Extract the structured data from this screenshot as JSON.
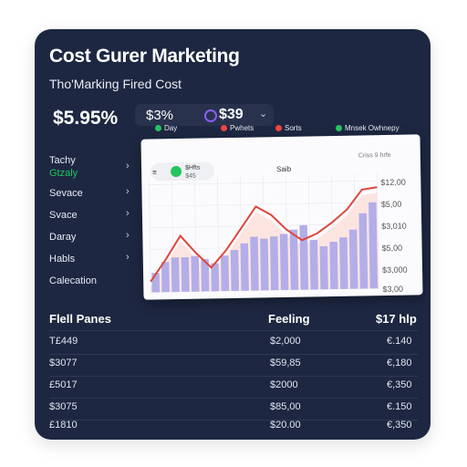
{
  "header": {
    "title": "Cost Gurer Marketing",
    "subtitle": "Tho'Marking Fired Cost",
    "big_value": "$5.95%",
    "pill": {
      "value_left": "$3%",
      "value_right": "$39"
    }
  },
  "sidebar": {
    "items": [
      {
        "label": "Tachy"
      },
      {
        "label": "Sevace"
      },
      {
        "label": "Svace"
      },
      {
        "label": "Daray"
      },
      {
        "label": "Habls"
      },
      {
        "label": "Calecation"
      }
    ],
    "active_sublabel": "Gtzaly"
  },
  "legend": {
    "items": [
      {
        "label": "Day",
        "color": "#22c55e"
      },
      {
        "label": "Pwhets",
        "color": "#ef4444"
      },
      {
        "label": "Sorts",
        "color": "#ef4444"
      },
      {
        "label": "Mnsek Owhnepy",
        "color": "#22c55e"
      }
    ]
  },
  "chart_panel": {
    "toolbar_text": "$Hfts",
    "toolbar_sub": "$45",
    "center_label": "Saib",
    "top_right_label": "Criss 9 hrfe",
    "tick_labels": [
      "$12,00",
      "$5,00",
      "$3,010",
      "$5,00",
      "$3,000",
      "$3,00"
    ]
  },
  "chart_data": {
    "type": "bar",
    "title": "",
    "series": [
      {
        "values": [
          0.18,
          0.28,
          0.32,
          0.32,
          0.33,
          0.3,
          0.26,
          0.33,
          0.38,
          0.44,
          0.5,
          0.48,
          0.5,
          0.52,
          0.56,
          0.6,
          0.46,
          0.4,
          0.44,
          0.48,
          0.55,
          0.7,
          0.8
        ]
      },
      {
        "values": [
          0.1,
          0.3,
          0.52,
          0.36,
          0.22,
          0.38,
          0.58,
          0.78,
          0.7,
          0.56,
          0.46,
          0.52,
          0.62,
          0.74,
          0.92,
          0.94
        ]
      }
    ],
    "ylim": [
      0,
      1
    ]
  },
  "table": {
    "headers": [
      "Flell Panes",
      "Feeling",
      "$17 hlp"
    ],
    "rows": [
      [
        "T£449",
        "$2,000",
        "€.140"
      ],
      [
        "$3077",
        "$59,85",
        "€,180"
      ],
      [
        "£5017",
        "$2000",
        "€,350"
      ],
      [
        "$3075",
        "$85,00",
        "€.150"
      ],
      [
        "£1810",
        "$20.00",
        "€,350"
      ]
    ]
  }
}
